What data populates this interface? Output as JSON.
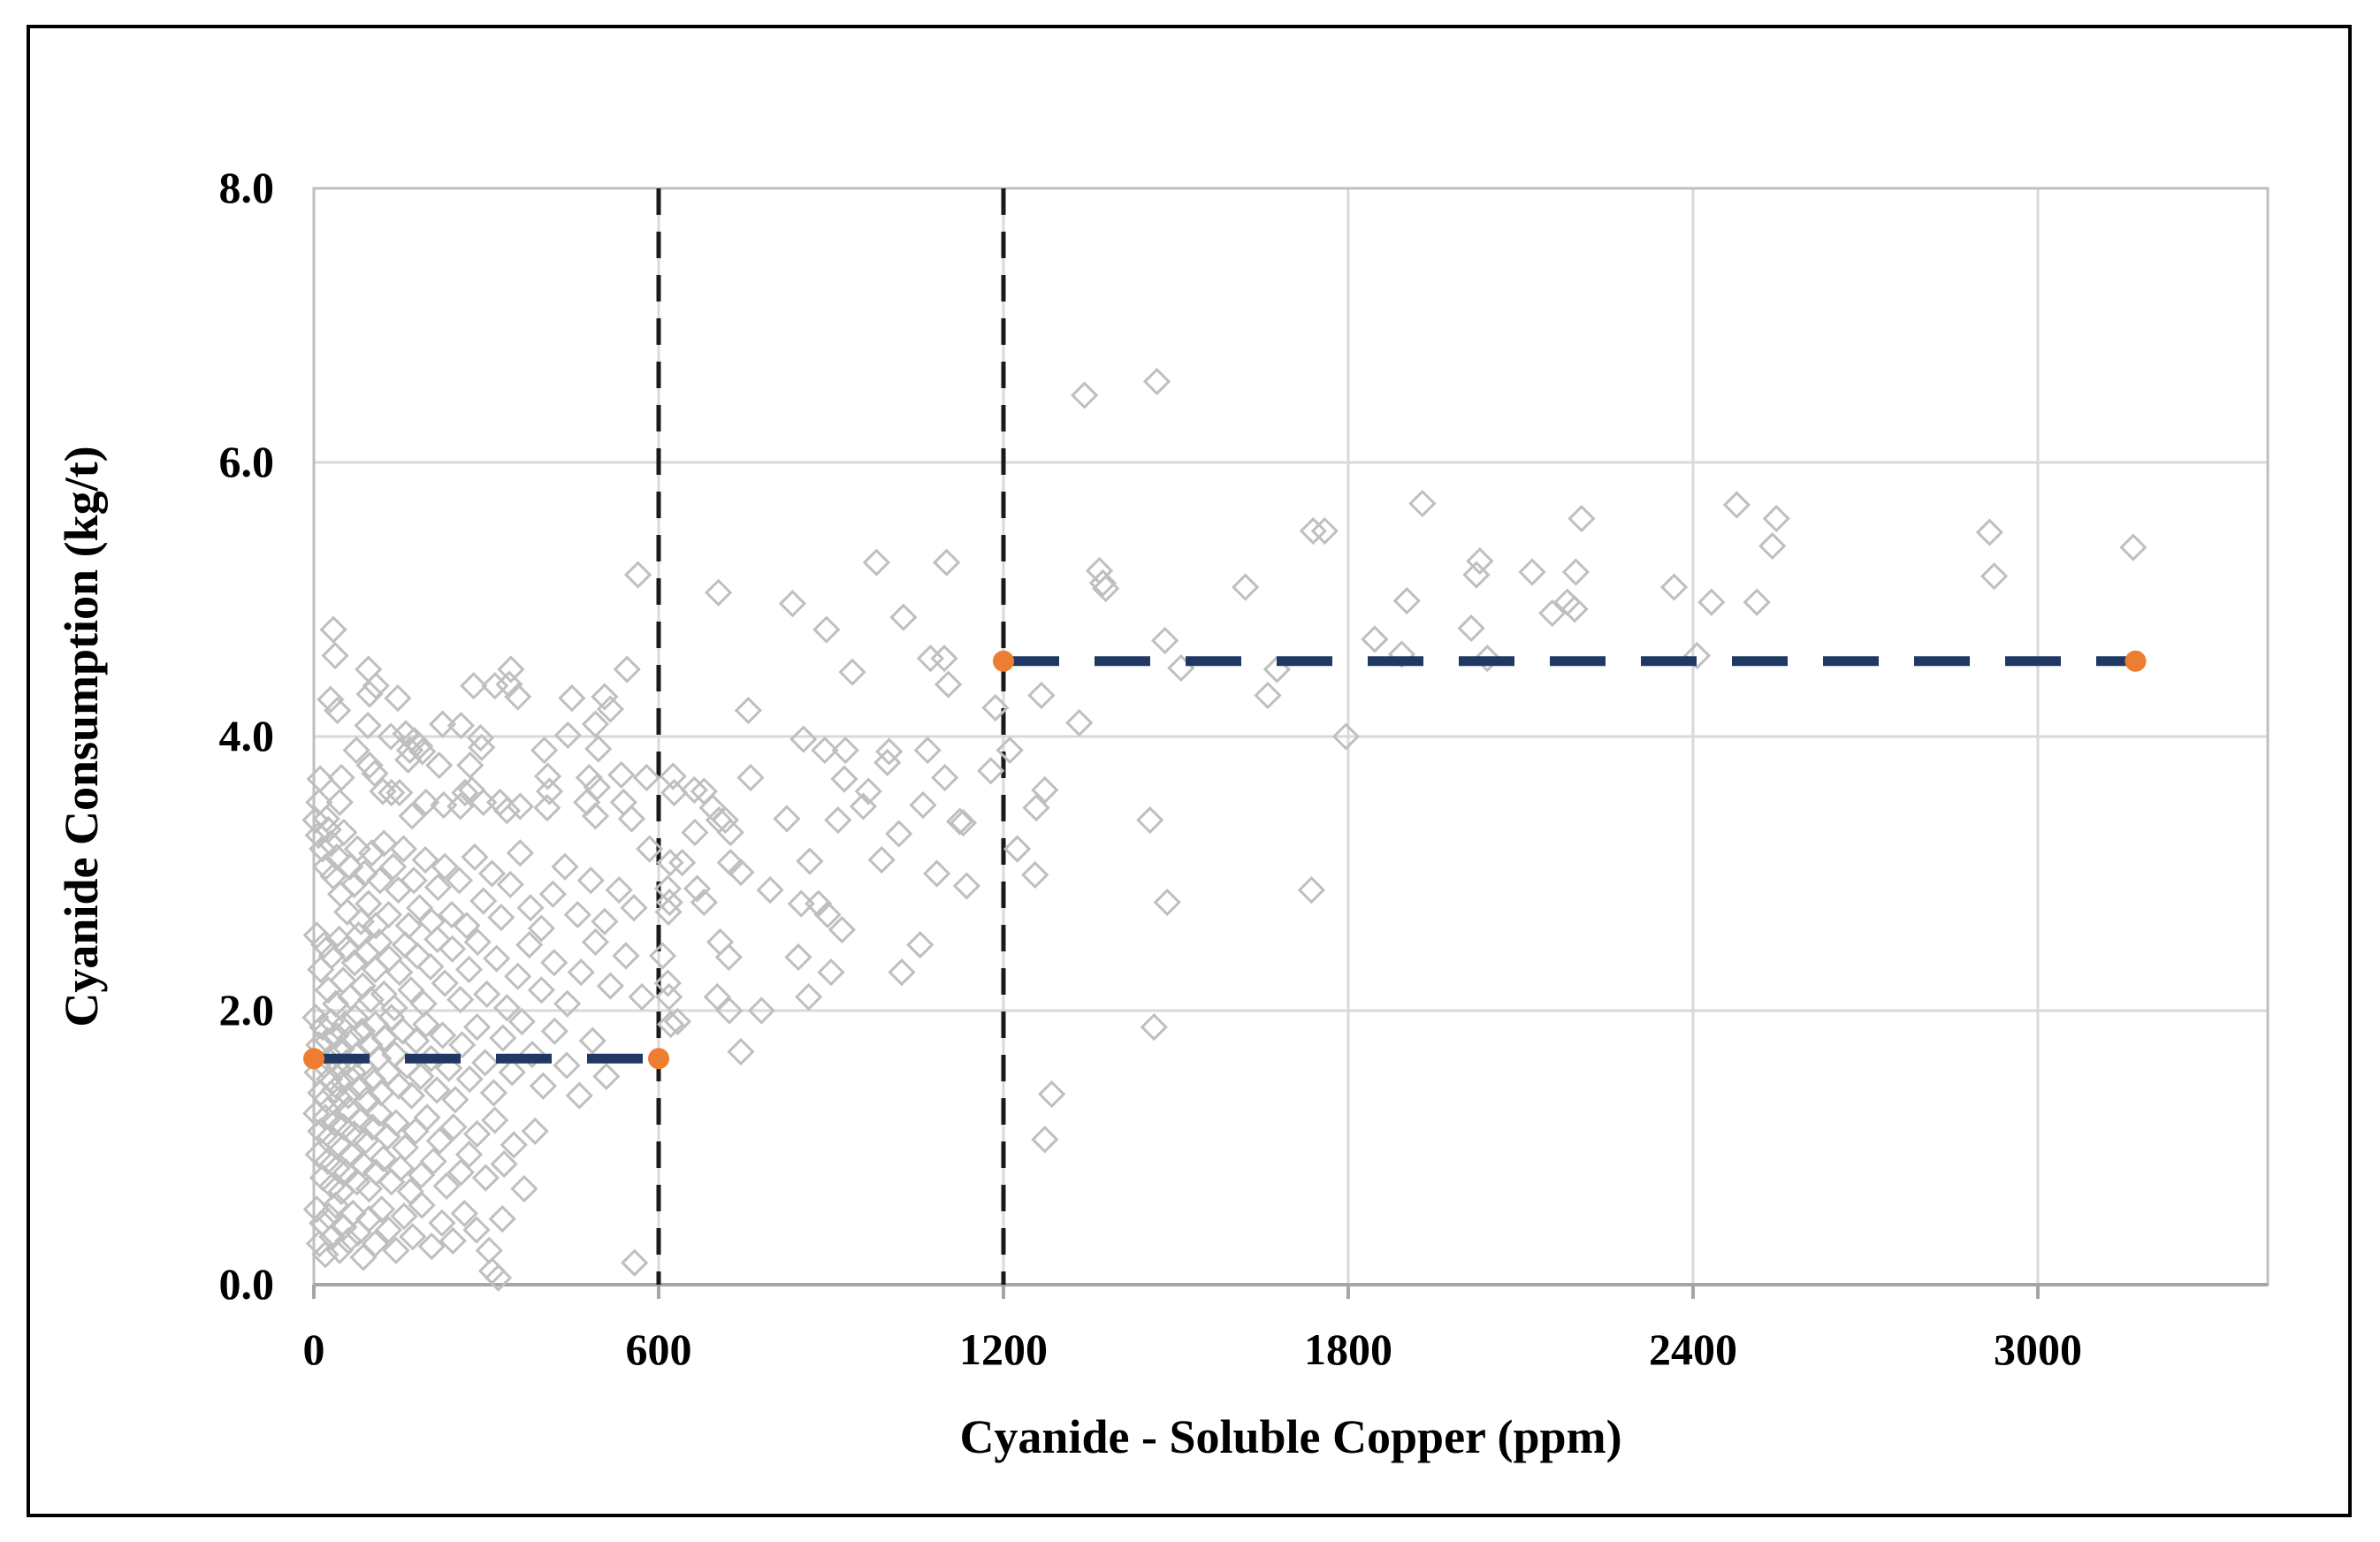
{
  "chart_data": {
    "type": "scatter",
    "title": "",
    "xlabel": "Cyanide - Soluble Copper (ppm)",
    "ylabel": "Cyanide Consumption (kg/t)",
    "xlim": [
      0,
      3400
    ],
    "ylim": [
      0,
      8
    ],
    "x_ticks": [
      0,
      600,
      1200,
      1800,
      2400,
      3000
    ],
    "x_tick_labels": [
      "0",
      "600",
      "1200",
      "1800",
      "2400",
      "3000"
    ],
    "y_ticks": [
      0,
      2,
      4,
      6,
      8
    ],
    "y_tick_labels": [
      "0.0",
      "2.0",
      "4.0",
      "6.0",
      "8.0"
    ],
    "grid": true,
    "legend": "none",
    "reference_lines_vertical": [
      600,
      1200
    ],
    "trend_segments": [
      {
        "name": "mean-low-copper",
        "y": 1.65,
        "x_start": 0,
        "x_end": 600
      },
      {
        "name": "mean-high-copper",
        "y": 4.55,
        "x_start": 1200,
        "x_end": 3170
      }
    ],
    "marker": {
      "shape": "open-diamond",
      "stroke": "#bfbfbf",
      "fill": "none",
      "size": 27
    },
    "points": [
      [
        564,
        5.18
      ],
      [
        34,
        4.78
      ],
      [
        37,
        4.59
      ],
      [
        95,
        4.49
      ],
      [
        108,
        4.37
      ],
      [
        97,
        4.31
      ],
      [
        29,
        4.27
      ],
      [
        41,
        4.19
      ],
      [
        146,
        4.28
      ],
      [
        343,
        4.49
      ],
      [
        278,
        4.37
      ],
      [
        315,
        4.37
      ],
      [
        340,
        4.38
      ],
      [
        355,
        4.29
      ],
      [
        449,
        4.28
      ],
      [
        506,
        4.29
      ],
      [
        516,
        4.2
      ],
      [
        545,
        4.49
      ],
      [
        490,
        4.09
      ],
      [
        94,
        4.08
      ],
      [
        224,
        4.09
      ],
      [
        256,
        4.08
      ],
      [
        134,
        4.0
      ],
      [
        160,
        4.02
      ],
      [
        175,
        3.97
      ],
      [
        184,
        3.93
      ],
      [
        167,
        3.9
      ],
      [
        189,
        3.89
      ],
      [
        442,
        4.01
      ],
      [
        290,
        3.99
      ],
      [
        292,
        3.92
      ],
      [
        74,
        3.9
      ],
      [
        401,
        3.9
      ],
      [
        495,
        3.91
      ],
      [
        97,
        3.79
      ],
      [
        106,
        3.73
      ],
      [
        164,
        3.83
      ],
      [
        218,
        3.79
      ],
      [
        272,
        3.79
      ],
      [
        11,
        3.69
      ],
      [
        48,
        3.7
      ],
      [
        407,
        3.71
      ],
      [
        410,
        3.6
      ],
      [
        479,
        3.7
      ],
      [
        493,
        3.63
      ],
      [
        535,
        3.72
      ],
      [
        579,
        3.7
      ],
      [
        120,
        3.6
      ],
      [
        135,
        3.59
      ],
      [
        149,
        3.59
      ],
      [
        9,
        3.52
      ],
      [
        22,
        3.4
      ],
      [
        45,
        3.52
      ],
      [
        195,
        3.52
      ],
      [
        226,
        3.5
      ],
      [
        255,
        3.49
      ],
      [
        263,
        3.59
      ],
      [
        275,
        3.61
      ],
      [
        295,
        3.52
      ],
      [
        324,
        3.52
      ],
      [
        336,
        3.46
      ],
      [
        359,
        3.49
      ],
      [
        406,
        3.48
      ],
      [
        475,
        3.52
      ],
      [
        490,
        3.42
      ],
      [
        539,
        3.52
      ],
      [
        553,
        3.4
      ],
      [
        171,
        3.42
      ],
      [
        3,
        3.39
      ],
      [
        25,
        3.32
      ],
      [
        625,
        3.71
      ],
      [
        627,
        3.59
      ],
      [
        704,
        5.05
      ],
      [
        979,
        5.27
      ],
      [
        1101,
        5.27
      ],
      [
        833,
        4.97
      ],
      [
        892,
        4.78
      ],
      [
        1026,
        4.87
      ],
      [
        937,
        4.47
      ],
      [
        1073,
        4.57
      ],
      [
        1097,
        4.57
      ],
      [
        1104,
        4.38
      ],
      [
        756,
        4.19
      ],
      [
        852,
        3.98
      ],
      [
        889,
        3.9
      ],
      [
        925,
        3.9
      ],
      [
        1001,
        3.89
      ],
      [
        998,
        3.81
      ],
      [
        1068,
        3.9
      ],
      [
        760,
        3.7
      ],
      [
        923,
        3.69
      ],
      [
        1098,
        3.7
      ],
      [
        1178,
        3.75
      ],
      [
        1186,
        4.21
      ],
      [
        679,
        3.6
      ],
      [
        662,
        3.61
      ],
      [
        694,
        3.48
      ],
      [
        705,
        3.39
      ],
      [
        716,
        3.39
      ],
      [
        725,
        3.3
      ],
      [
        663,
        3.3
      ],
      [
        965,
        3.6
      ],
      [
        956,
        3.49
      ],
      [
        1060,
        3.5
      ],
      [
        1124,
        3.38
      ],
      [
        823,
        3.4
      ],
      [
        912,
        3.39
      ],
      [
        1018,
        3.29
      ],
      [
        1130,
        3.37
      ],
      [
        620,
        3.08
      ],
      [
        641,
        3.08
      ],
      [
        725,
        3.08
      ],
      [
        743,
        3.01
      ],
      [
        863,
        3.09
      ],
      [
        988,
        3.1
      ],
      [
        1084,
        3.0
      ],
      [
        1136,
        2.91
      ],
      [
        616,
        2.89
      ],
      [
        667,
        2.89
      ],
      [
        619,
        2.79
      ],
      [
        679,
        2.79
      ],
      [
        794,
        2.88
      ],
      [
        848,
        2.78
      ],
      [
        878,
        2.78
      ],
      [
        894,
        2.7
      ],
      [
        919,
        2.59
      ],
      [
        617,
        2.72
      ],
      [
        707,
        2.5
      ],
      [
        722,
        2.39
      ],
      [
        607,
        2.4
      ],
      [
        843,
        2.39
      ],
      [
        900,
        2.28
      ],
      [
        1023,
        2.28
      ],
      [
        1055,
        2.48
      ],
      [
        616,
        2.2
      ],
      [
        618,
        2.1
      ],
      [
        702,
        2.1
      ],
      [
        723,
        2.0
      ],
      [
        779,
        2.0
      ],
      [
        861,
        2.1
      ],
      [
        621,
        1.9
      ],
      [
        633,
        1.92
      ],
      [
        743,
        1.7
      ],
      [
        1341,
        6.49
      ],
      [
        1467,
        6.59
      ],
      [
        1739,
        5.5
      ],
      [
        1759,
        5.5
      ],
      [
        1929,
        5.7
      ],
      [
        1367,
        5.21
      ],
      [
        1373,
        5.12
      ],
      [
        1378,
        5.08
      ],
      [
        1621,
        5.09
      ],
      [
        1902,
        4.99
      ],
      [
        1481,
        4.7
      ],
      [
        1509,
        4.5
      ],
      [
        1676,
        4.49
      ],
      [
        1846,
        4.71
      ],
      [
        1893,
        4.6
      ],
      [
        1266,
        4.3
      ],
      [
        1332,
        4.1
      ],
      [
        1660,
        4.3
      ],
      [
        1796,
        4.0
      ],
      [
        1211,
        3.9
      ],
      [
        1272,
        3.61
      ],
      [
        1257,
        3.48
      ],
      [
        1455,
        3.39
      ],
      [
        1224,
        3.18
      ],
      [
        1255,
        2.99
      ],
      [
        1736,
        2.88
      ],
      [
        1485,
        2.79
      ],
      [
        1462,
        1.88
      ],
      [
        1284,
        1.39
      ],
      [
        1272,
        1.06
      ],
      [
        2206,
        5.59
      ],
      [
        2029,
        5.28
      ],
      [
        2023,
        5.18
      ],
      [
        2120,
        5.2
      ],
      [
        2196,
        5.2
      ],
      [
        2476,
        5.69
      ],
      [
        2545,
        5.59
      ],
      [
        2538,
        5.39
      ],
      [
        2367,
        5.09
      ],
      [
        2432,
        4.98
      ],
      [
        2511,
        4.98
      ],
      [
        2155,
        4.9
      ],
      [
        2181,
        4.98
      ],
      [
        2194,
        4.93
      ],
      [
        2014,
        4.79
      ],
      [
        2042,
        4.57
      ],
      [
        2407,
        4.59
      ],
      [
        2916,
        5.49
      ],
      [
        2924,
        5.17
      ],
      [
        3166,
        5.38
      ],
      [
        8,
        3.28
      ],
      [
        15,
        3.18
      ],
      [
        21,
        3.05
      ],
      [
        30,
        3.22
      ],
      [
        34,
        2.98
      ],
      [
        40,
        3.12
      ],
      [
        47,
        2.85
      ],
      [
        52,
        3.3
      ],
      [
        58,
        2.72
      ],
      [
        63,
        3.05
      ],
      [
        70,
        2.92
      ],
      [
        76,
        3.18
      ],
      [
        82,
        2.65
      ],
      [
        88,
        3.0
      ],
      [
        95,
        2.78
      ],
      [
        101,
        3.15
      ],
      [
        108,
        2.62
      ],
      [
        115,
        2.95
      ],
      [
        122,
        3.22
      ],
      [
        130,
        2.7
      ],
      [
        138,
        3.05
      ],
      [
        147,
        2.88
      ],
      [
        156,
        3.18
      ],
      [
        165,
        2.62
      ],
      [
        174,
        2.95
      ],
      [
        184,
        2.75
      ],
      [
        194,
        3.1
      ],
      [
        205,
        2.65
      ],
      [
        216,
        2.9
      ],
      [
        228,
        3.05
      ],
      [
        240,
        2.7
      ],
      [
        253,
        2.95
      ],
      [
        266,
        2.62
      ],
      [
        280,
        3.12
      ],
      [
        295,
        2.8
      ],
      [
        310,
        3.0
      ],
      [
        326,
        2.68
      ],
      [
        342,
        2.92
      ],
      [
        359,
        3.15
      ],
      [
        377,
        2.75
      ],
      [
        396,
        2.6
      ],
      [
        416,
        2.85
      ],
      [
        437,
        3.05
      ],
      [
        459,
        2.7
      ],
      [
        482,
        2.95
      ],
      [
        506,
        2.65
      ],
      [
        531,
        2.88
      ],
      [
        557,
        2.75
      ],
      [
        584,
        3.18
      ],
      [
        5,
        2.55
      ],
      [
        12,
        2.3
      ],
      [
        18,
        2.48
      ],
      [
        25,
        2.15
      ],
      [
        31,
        2.4
      ],
      [
        38,
        2.05
      ],
      [
        44,
        2.52
      ],
      [
        51,
        2.22
      ],
      [
        57,
        2.45
      ],
      [
        64,
        2.1
      ],
      [
        71,
        2.35
      ],
      [
        78,
        2.55
      ],
      [
        85,
        2.18
      ],
      [
        92,
        2.42
      ],
      [
        99,
        2.08
      ],
      [
        107,
        2.3
      ],
      [
        114,
        2.5
      ],
      [
        122,
        2.12
      ],
      [
        131,
        2.38
      ],
      [
        140,
        2.02
      ],
      [
        149,
        2.28
      ],
      [
        159,
        2.48
      ],
      [
        169,
        2.15
      ],
      [
        180,
        2.4
      ],
      [
        191,
        2.05
      ],
      [
        203,
        2.32
      ],
      [
        215,
        2.52
      ],
      [
        228,
        2.2
      ],
      [
        241,
        2.45
      ],
      [
        255,
        2.08
      ],
      [
        270,
        2.3
      ],
      [
        285,
        2.5
      ],
      [
        301,
        2.12
      ],
      [
        318,
        2.38
      ],
      [
        336,
        2.02
      ],
      [
        355,
        2.25
      ],
      [
        375,
        2.48
      ],
      [
        396,
        2.15
      ],
      [
        418,
        2.35
      ],
      [
        441,
        2.05
      ],
      [
        465,
        2.28
      ],
      [
        490,
        2.5
      ],
      [
        516,
        2.18
      ],
      [
        543,
        2.4
      ],
      [
        571,
        2.1
      ],
      [
        3,
        1.95
      ],
      [
        6,
        1.55
      ],
      [
        9,
        1.75
      ],
      [
        12,
        1.4
      ],
      [
        15,
        1.88
      ],
      [
        18,
        1.6
      ],
      [
        21,
        1.35
      ],
      [
        24,
        1.78
      ],
      [
        27,
        1.5
      ],
      [
        30,
        1.92
      ],
      [
        33,
        1.65
      ],
      [
        36,
        1.42
      ],
      [
        39,
        1.82
      ],
      [
        42,
        1.58
      ],
      [
        45,
        1.36
      ],
      [
        48,
        1.72
      ],
      [
        51,
        1.48
      ],
      [
        54,
        1.9
      ],
      [
        57,
        1.62
      ],
      [
        60,
        1.38
      ],
      [
        64,
        1.8
      ],
      [
        68,
        1.55
      ],
      [
        72,
        1.95
      ],
      [
        76,
        1.68
      ],
      [
        80,
        1.44
      ],
      [
        84,
        1.85
      ],
      [
        88,
        1.58
      ],
      [
        92,
        1.35
      ],
      [
        97,
        1.75
      ],
      [
        102,
        1.5
      ],
      [
        107,
        1.9
      ],
      [
        112,
        1.65
      ],
      [
        117,
        1.4
      ],
      [
        123,
        1.8
      ],
      [
        129,
        1.55
      ],
      [
        135,
        1.95
      ],
      [
        141,
        1.68
      ],
      [
        148,
        1.45
      ],
      [
        155,
        1.85
      ],
      [
        162,
        1.6
      ],
      [
        170,
        1.38
      ],
      [
        178,
        1.78
      ],
      [
        186,
        1.52
      ],
      [
        195,
        1.9
      ],
      [
        204,
        1.65
      ],
      [
        214,
        1.42
      ],
      [
        224,
        1.82
      ],
      [
        235,
        1.58
      ],
      [
        246,
        1.35
      ],
      [
        258,
        1.75
      ],
      [
        271,
        1.5
      ],
      [
        284,
        1.88
      ],
      [
        298,
        1.62
      ],
      [
        313,
        1.4
      ],
      [
        329,
        1.8
      ],
      [
        345,
        1.55
      ],
      [
        362,
        1.92
      ],
      [
        380,
        1.68
      ],
      [
        399,
        1.45
      ],
      [
        419,
        1.85
      ],
      [
        440,
        1.6
      ],
      [
        462,
        1.38
      ],
      [
        485,
        1.78
      ],
      [
        509,
        1.52
      ],
      [
        4,
        1.25
      ],
      [
        8,
        0.95
      ],
      [
        12,
        1.12
      ],
      [
        16,
        0.78
      ],
      [
        20,
        1.22
      ],
      [
        24,
        0.9
      ],
      [
        28,
        1.08
      ],
      [
        32,
        0.72
      ],
      [
        36,
        1.18
      ],
      [
        40,
        0.85
      ],
      [
        44,
        1.02
      ],
      [
        48,
        0.68
      ],
      [
        52,
        1.15
      ],
      [
        56,
        0.82
      ],
      [
        60,
        1.28
      ],
      [
        65,
        0.95
      ],
      [
        70,
        1.1
      ],
      [
        75,
        0.75
      ],
      [
        80,
        1.2
      ],
      [
        85,
        0.88
      ],
      [
        90,
        1.05
      ],
      [
        96,
        0.7
      ],
      [
        102,
        1.15
      ],
      [
        108,
        0.82
      ],
      [
        114,
        1.25
      ],
      [
        121,
        0.92
      ],
      [
        128,
        1.08
      ],
      [
        135,
        0.75
      ],
      [
        143,
        1.18
      ],
      [
        151,
        0.85
      ],
      [
        159,
        1.0
      ],
      [
        168,
        0.68
      ],
      [
        177,
        1.12
      ],
      [
        187,
        0.8
      ],
      [
        197,
        1.22
      ],
      [
        208,
        0.9
      ],
      [
        219,
        1.05
      ],
      [
        231,
        0.72
      ],
      [
        243,
        1.15
      ],
      [
        256,
        0.82
      ],
      [
        270,
        0.95
      ],
      [
        284,
        1.1
      ],
      [
        299,
        0.78
      ],
      [
        315,
        1.2
      ],
      [
        331,
        0.88
      ],
      [
        348,
        1.02
      ],
      [
        366,
        0.7
      ],
      [
        385,
        1.12
      ],
      [
        5,
        0.55
      ],
      [
        10,
        0.3
      ],
      [
        15,
        0.45
      ],
      [
        20,
        0.22
      ],
      [
        26,
        0.5
      ],
      [
        32,
        0.35
      ],
      [
        38,
        0.58
      ],
      [
        45,
        0.25
      ],
      [
        52,
        0.42
      ],
      [
        60,
        0.32
      ],
      [
        68,
        0.52
      ],
      [
        77,
        0.38
      ],
      [
        86,
        0.2
      ],
      [
        96,
        0.48
      ],
      [
        107,
        0.3
      ],
      [
        118,
        0.55
      ],
      [
        130,
        0.4
      ],
      [
        143,
        0.25
      ],
      [
        157,
        0.5
      ],
      [
        172,
        0.35
      ],
      [
        188,
        0.58
      ],
      [
        205,
        0.28
      ],
      [
        223,
        0.45
      ],
      [
        242,
        0.32
      ],
      [
        262,
        0.52
      ],
      [
        283,
        0.4
      ],
      [
        305,
        0.25
      ],
      [
        328,
        0.48
      ],
      [
        310,
        0.1
      ],
      [
        558,
        0.16
      ],
      [
        321,
        0.05
      ]
    ]
  },
  "colors": {
    "trend_line": "#1f3864",
    "trend_endpoint": "#ed7d31",
    "reference_dash": "#1a1a1a",
    "gridline": "#d9d9d9",
    "axis_line": "#a6a6a6",
    "plot_border": "#bfbfbf",
    "marker_stroke": "#bfbfbf",
    "text": "#000000",
    "frame": "#000000"
  }
}
